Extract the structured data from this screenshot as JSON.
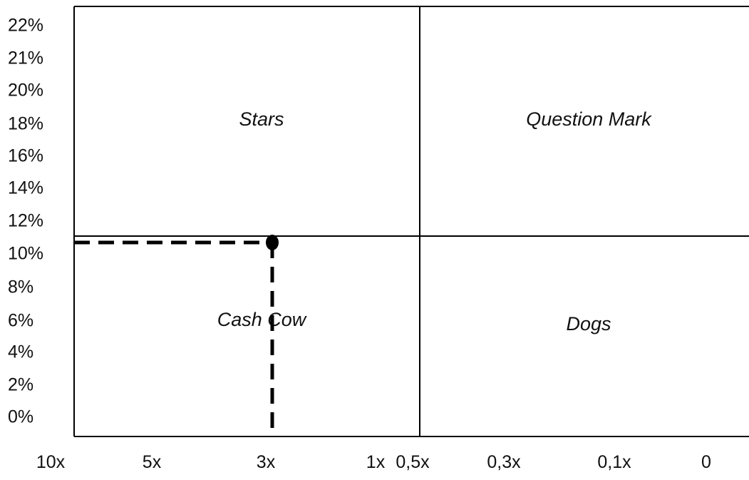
{
  "chart_data": {
    "type": "scatter",
    "title": "",
    "xlabel": "",
    "ylabel": "",
    "y_ticks": [
      "22%",
      "21%",
      "20%",
      "18%",
      "16%",
      "14%",
      "12%",
      "10%",
      "8%",
      "6%",
      "4%",
      "2%",
      "0%"
    ],
    "x_ticks": [
      "10x",
      "5x",
      "3x",
      "1x",
      "0,5x",
      "0,3x",
      "0,1x",
      "0"
    ],
    "quadrants": {
      "top_left": "Stars",
      "top_right": "Question Mark",
      "bottom_left": "Cash Cow",
      "bottom_right": "Dogs"
    },
    "dividers": {
      "x": "0,5x",
      "y": "11%"
    },
    "points": [
      {
        "x": "3x",
        "y": "11%"
      }
    ],
    "grid": false,
    "colors": {
      "line": "#000000",
      "text": "#111111",
      "background": "#ffffff"
    }
  }
}
